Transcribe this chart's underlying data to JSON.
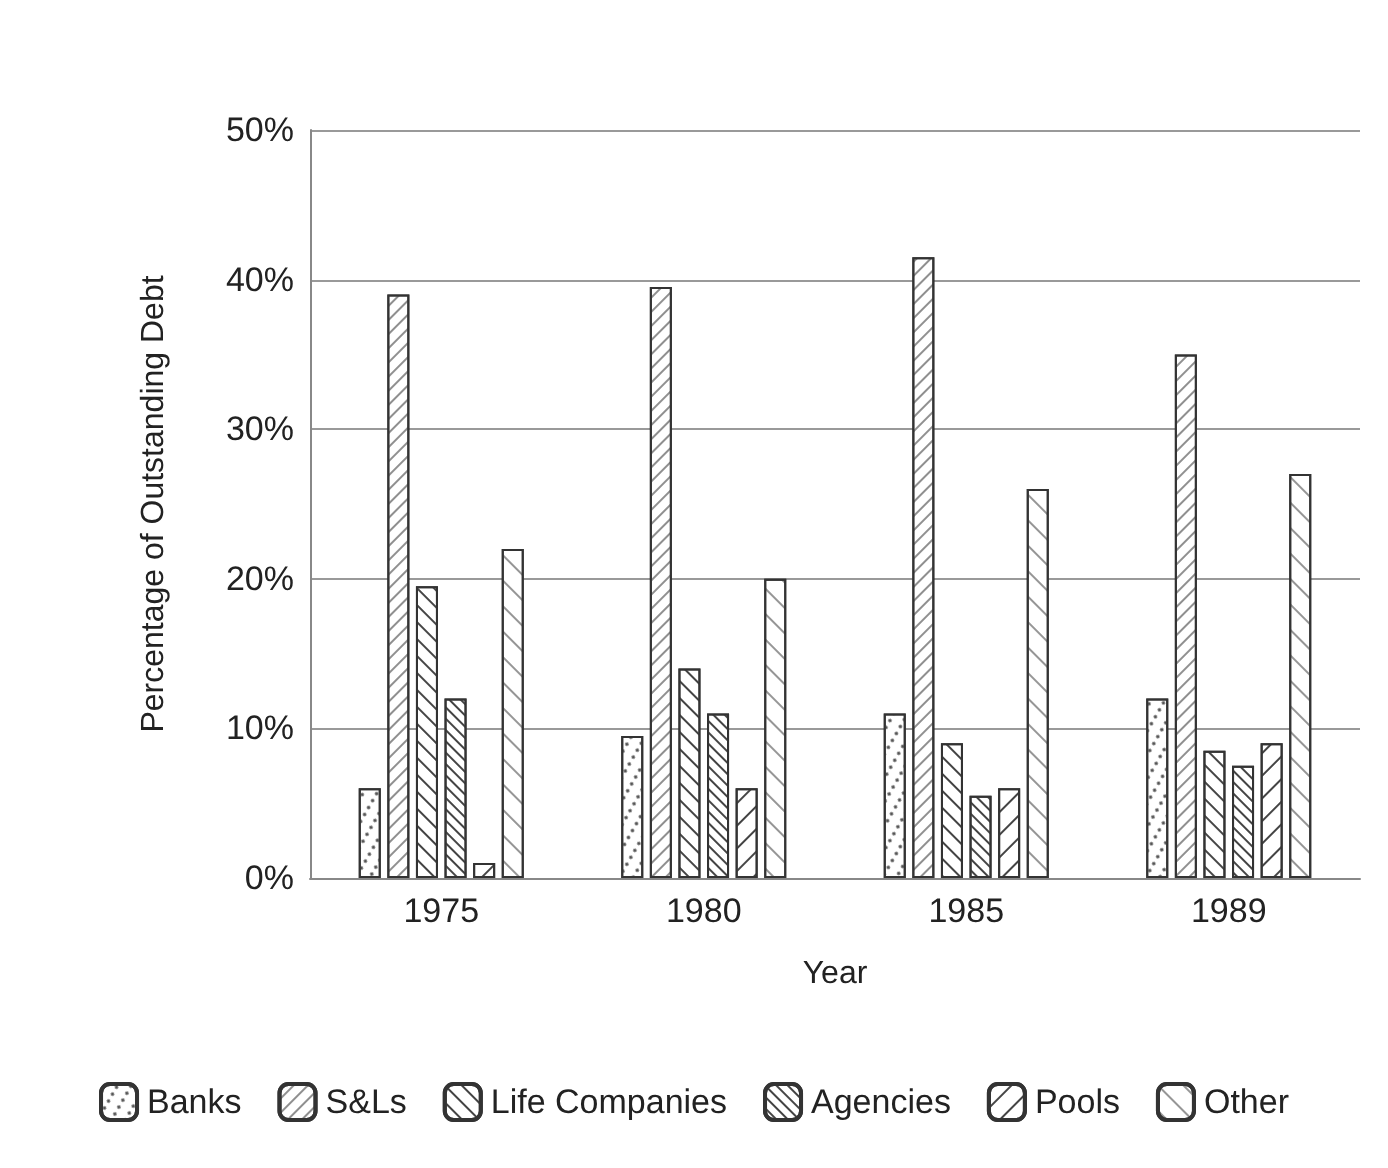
{
  "chart_data": {
    "type": "bar",
    "xlabel": "Year",
    "ylabel": "Percentage of Outstanding Debt",
    "categories": [
      "1975",
      "1980",
      "1985",
      "1989"
    ],
    "series": [
      {
        "name": "Banks",
        "color": "#ffffff",
        "values": [
          6,
          9.5,
          11,
          12
        ]
      },
      {
        "name": "S&Ls",
        "color": "#ffffff",
        "values": [
          39,
          39.5,
          41.5,
          35
        ]
      },
      {
        "name": "Life Companies",
        "color": "#ffffff",
        "values": [
          19.5,
          14,
          9,
          8.5
        ]
      },
      {
        "name": "Agencies",
        "color": "#ffffff",
        "values": [
          12,
          11,
          5.5,
          7.5
        ]
      },
      {
        "name": "Pools",
        "color": "#ffffff",
        "values": [
          1,
          6,
          6,
          9
        ]
      },
      {
        "name": "Other",
        "color": "#ffffff",
        "values": [
          22,
          20,
          26,
          27
        ]
      }
    ],
    "ylim": [
      0,
      50
    ],
    "yticks": [
      {
        "value": 0,
        "label": "0%"
      },
      {
        "value": 10,
        "label": "10%"
      },
      {
        "value": 20,
        "label": "20%"
      },
      {
        "value": 30,
        "label": "30%"
      },
      {
        "value": 40,
        "label": "40%"
      },
      {
        "value": 50,
        "label": "50%"
      }
    ],
    "grid": "y",
    "legend": "bottom"
  }
}
